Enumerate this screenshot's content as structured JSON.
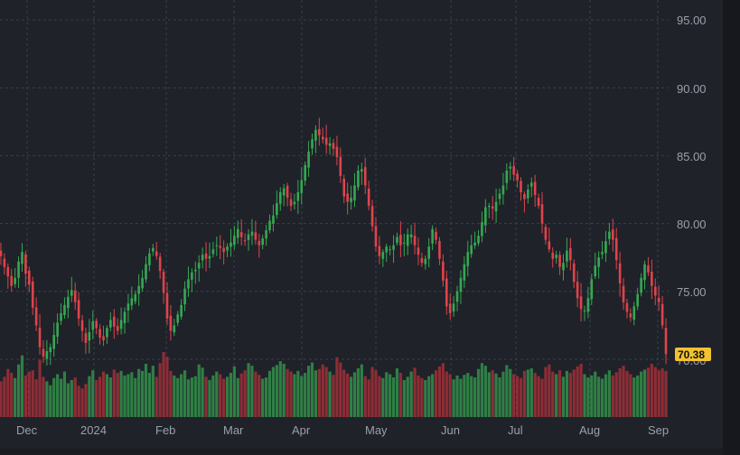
{
  "chart_data": {
    "type": "candlestick",
    "title": "",
    "xlabel": "",
    "ylabel": "",
    "ylim": [
      66.0,
      96.0
    ],
    "y_ticks": [
      "95.00",
      "90.00",
      "85.00",
      "80.00",
      "75.00",
      "70.00"
    ],
    "x_ticks": [
      "Dec",
      "2024",
      "Feb",
      "Mar",
      "Apr",
      "May",
      "Jun",
      "Jul",
      "Aug",
      "Sep"
    ],
    "last_price": "70.38",
    "grid": true,
    "colors": {
      "up": "#36a852",
      "down": "#e0434b",
      "up_volume": "#2f7f45",
      "down_volume": "#8e2d36",
      "last_price_tag": "#f1c232"
    },
    "close_series": [
      77.6,
      76.8,
      76.1,
      75.4,
      76.0,
      77.2,
      77.9,
      76.3,
      75.5,
      73.8,
      72.5,
      70.9,
      70.2,
      70.6,
      70.9,
      71.8,
      72.7,
      73.4,
      74.0,
      74.6,
      75.1,
      74.2,
      73.0,
      72.1,
      71.2,
      72.0,
      72.8,
      72.3,
      71.6,
      71.4,
      72.3,
      72.9,
      72.4,
      72.1,
      72.9,
      73.5,
      74.1,
      74.5,
      74.8,
      75.4,
      76.0,
      77.0,
      77.8,
      78.2,
      77.6,
      76.5,
      74.9,
      73.0,
      72.1,
      72.5,
      73.3,
      74.0,
      75.2,
      75.9,
      76.4,
      76.6,
      77.1,
      77.7,
      77.4,
      77.6,
      78.1,
      78.4,
      78.2,
      77.9,
      78.3,
      78.6,
      79.1,
      79.6,
      79.0,
      78.7,
      79.2,
      79.4,
      78.8,
      78.4,
      78.9,
      79.5,
      80.2,
      80.6,
      81.5,
      82.3,
      82.6,
      81.9,
      81.3,
      81.6,
      82.3,
      83.2,
      84.3,
      85.3,
      86.2,
      86.9,
      86.5,
      86.2,
      85.8,
      85.9,
      85.5,
      84.9,
      83.5,
      82.0,
      81.6,
      81.9,
      82.8,
      83.9,
      84.0,
      82.8,
      81.3,
      79.8,
      78.3,
      77.6,
      77.9,
      78.3,
      78.1,
      78.4,
      79.0,
      78.4,
      78.6,
      79.2,
      79.2,
      78.4,
      77.7,
      77.1,
      77.4,
      78.3,
      79.6,
      78.8,
      77.4,
      75.8,
      73.9,
      73.4,
      74.1,
      75.0,
      76.0,
      77.0,
      77.9,
      78.4,
      78.6,
      79.1,
      80.1,
      81.2,
      81.3,
      81.1,
      81.6,
      82.2,
      82.8,
      83.9,
      84.2,
      83.6,
      83.2,
      82.3,
      81.8,
      82.5,
      83.0,
      82.1,
      81.3,
      80.0,
      78.8,
      78.1,
      77.4,
      77.7,
      76.8,
      77.1,
      78.0,
      77.3,
      75.7,
      74.5,
      73.7,
      73.6,
      74.5,
      75.9,
      76.9,
      77.5,
      77.9,
      78.7,
      79.4,
      78.8,
      77.3,
      75.6,
      74.2,
      73.5,
      73.1,
      73.9,
      74.8,
      76.0,
      77.0,
      76.4,
      75.4,
      74.7,
      74.2,
      72.5,
      70.38
    ],
    "volume_series": [
      0.55,
      0.62,
      0.74,
      0.68,
      0.6,
      0.81,
      0.95,
      0.64,
      0.7,
      0.72,
      0.58,
      0.88,
      0.62,
      0.55,
      0.49,
      0.6,
      0.66,
      0.59,
      0.7,
      0.52,
      0.57,
      0.61,
      0.48,
      0.44,
      0.51,
      0.63,
      0.72,
      0.57,
      0.62,
      0.7,
      0.66,
      0.61,
      0.73,
      0.68,
      0.71,
      0.64,
      0.66,
      0.69,
      0.6,
      0.74,
      0.71,
      0.82,
      0.68,
      0.79,
      0.62,
      0.83,
      1.0,
      0.93,
      0.71,
      0.64,
      0.6,
      0.66,
      0.72,
      0.58,
      0.61,
      0.63,
      0.81,
      0.76,
      0.62,
      0.57,
      0.64,
      0.7,
      0.66,
      0.59,
      0.62,
      0.68,
      0.78,
      0.6,
      0.67,
      0.72,
      0.83,
      0.79,
      0.7,
      0.65,
      0.59,
      0.61,
      0.71,
      0.77,
      0.8,
      0.86,
      0.82,
      0.74,
      0.7,
      0.66,
      0.71,
      0.63,
      0.68,
      0.79,
      0.84,
      0.72,
      0.74,
      0.81,
      0.77,
      0.7,
      0.65,
      0.92,
      0.84,
      0.73,
      0.67,
      0.62,
      0.69,
      0.75,
      0.81,
      0.63,
      0.58,
      0.77,
      0.72,
      0.63,
      0.6,
      0.69,
      0.66,
      0.61,
      0.75,
      0.68,
      0.57,
      0.62,
      0.7,
      0.76,
      0.64,
      0.6,
      0.57,
      0.63,
      0.66,
      0.72,
      0.78,
      0.83,
      0.7,
      0.66,
      0.58,
      0.64,
      0.59,
      0.65,
      0.68,
      0.63,
      0.61,
      0.74,
      0.83,
      0.79,
      0.69,
      0.72,
      0.67,
      0.61,
      0.7,
      0.8,
      0.74,
      0.66,
      0.63,
      0.6,
      0.71,
      0.73,
      0.75,
      0.68,
      0.63,
      0.59,
      0.77,
      0.81,
      0.7,
      0.66,
      0.72,
      0.62,
      0.71,
      0.68,
      0.73,
      0.78,
      0.82,
      0.66,
      0.61,
      0.64,
      0.7,
      0.62,
      0.59,
      0.66,
      0.72,
      0.64,
      0.69,
      0.75,
      0.79,
      0.71,
      0.66,
      0.61,
      0.64,
      0.7,
      0.73,
      0.76,
      0.82,
      0.77,
      0.72,
      0.75,
      0.71
    ]
  }
}
